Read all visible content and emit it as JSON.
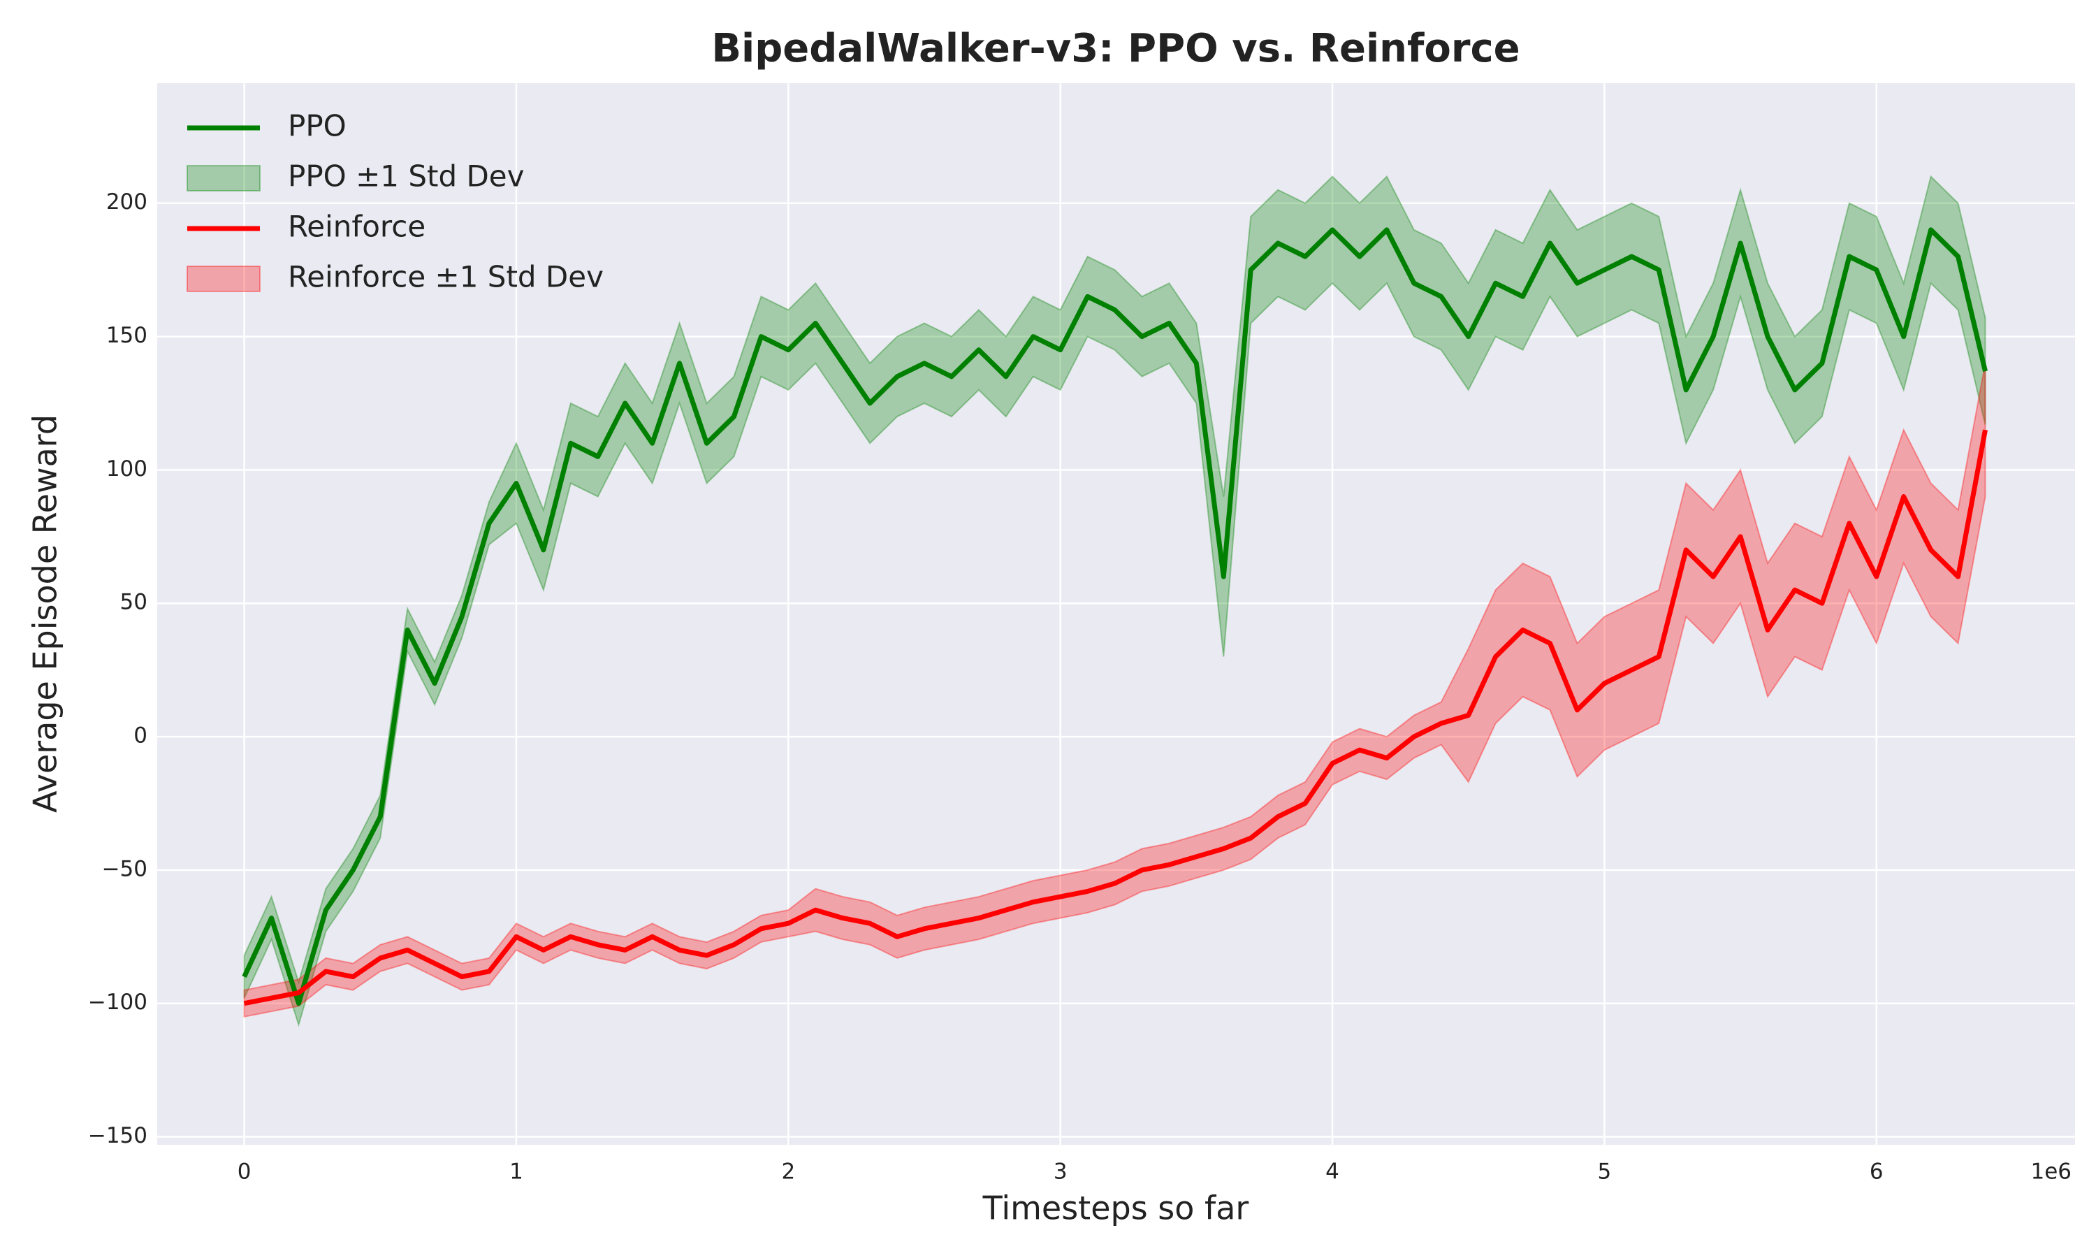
{
  "chart_data": {
    "type": "line",
    "title": "BipedalWalker-v3: PPO vs. Reinforce",
    "x_label": "Timesteps so far",
    "y_label": "Average Episode Reward",
    "x_offset_label": "1e6",
    "xlim": [
      -0.32,
      6.73
    ],
    "ylim": [
      -153,
      245
    ],
    "xticks": [
      0,
      1,
      2,
      3,
      4,
      5,
      6
    ],
    "yticks": [
      {
        "value": -150,
        "label": "−150"
      },
      {
        "value": -100,
        "label": "−100"
      },
      {
        "value": -50,
        "label": "−50"
      },
      0,
      50,
      100,
      150,
      200
    ],
    "grid": true,
    "legend": "upper left",
    "x": [
      0,
      0.1,
      0.2,
      0.3,
      0.4,
      0.5,
      0.6,
      0.7,
      0.8,
      0.9,
      1.0,
      1.1,
      1.2,
      1.3,
      1.4,
      1.5,
      1.6,
      1.7,
      1.8,
      1.9,
      2.0,
      2.1,
      2.2,
      2.3,
      2.4,
      2.5,
      2.6,
      2.7,
      2.8,
      2.9,
      3.0,
      3.1,
      3.2,
      3.3,
      3.4,
      3.5,
      3.6,
      3.7,
      3.8,
      3.9,
      4.0,
      4.1,
      4.2,
      4.3,
      4.4,
      4.5,
      4.6,
      4.7,
      4.8,
      4.9,
      5.0,
      5.1,
      5.2,
      5.3,
      5.4,
      5.5,
      5.6,
      5.7,
      5.8,
      5.9,
      6.0,
      6.1,
      6.2,
      6.3,
      6.4
    ],
    "series": [
      {
        "name": "PPO",
        "color": "#008000",
        "values": [
          -90,
          -68,
          -100,
          -65,
          -50,
          -30,
          40,
          20,
          45,
          80,
          95,
          70,
          110,
          105,
          125,
          110,
          140,
          110,
          120,
          150,
          145,
          155,
          140,
          125,
          135,
          140,
          135,
          145,
          135,
          150,
          145,
          165,
          160,
          150,
          155,
          140,
          60,
          175,
          185,
          180,
          190,
          180,
          190,
          170,
          165,
          150,
          170,
          165,
          185,
          170,
          175,
          180,
          175,
          130,
          150,
          185,
          150,
          130,
          140,
          180,
          175,
          150,
          190,
          180,
          137
        ],
        "band": {
          "name": "PPO ±1 Std Dev",
          "lower": [
            -98,
            -76,
            -108,
            -73,
            -58,
            -38,
            32,
            12,
            37,
            72,
            80,
            55,
            95,
            90,
            110,
            95,
            125,
            95,
            105,
            135,
            130,
            140,
            125,
            110,
            120,
            125,
            120,
            130,
            120,
            135,
            130,
            150,
            145,
            135,
            140,
            125,
            30,
            155,
            165,
            160,
            170,
            160,
            170,
            150,
            145,
            130,
            150,
            145,
            165,
            150,
            155,
            160,
            155,
            110,
            130,
            165,
            130,
            110,
            120,
            160,
            155,
            130,
            170,
            160,
            117
          ],
          "upper": [
            -82,
            -60,
            -92,
            -57,
            -42,
            -22,
            48,
            28,
            53,
            88,
            110,
            85,
            125,
            120,
            140,
            125,
            155,
            125,
            135,
            165,
            160,
            170,
            155,
            140,
            150,
            155,
            150,
            160,
            150,
            165,
            160,
            180,
            175,
            165,
            170,
            155,
            90,
            195,
            205,
            200,
            210,
            200,
            210,
            190,
            185,
            170,
            190,
            185,
            205,
            190,
            195,
            200,
            195,
            150,
            170,
            205,
            170,
            150,
            160,
            200,
            195,
            170,
            210,
            200,
            157
          ]
        }
      },
      {
        "name": "Reinforce",
        "color": "#ff0000",
        "values": [
          -100,
          -98,
          -96,
          -88,
          -90,
          -83,
          -80,
          -85,
          -90,
          -88,
          -75,
          -80,
          -75,
          -78,
          -80,
          -75,
          -80,
          -82,
          -78,
          -72,
          -70,
          -65,
          -68,
          -70,
          -75,
          -72,
          -70,
          -68,
          -65,
          -62,
          -60,
          -58,
          -55,
          -50,
          -48,
          -45,
          -42,
          -38,
          -30,
          -25,
          -10,
          -5,
          -8,
          0,
          5,
          8,
          30,
          40,
          35,
          10,
          20,
          25,
          30,
          70,
          60,
          75,
          40,
          55,
          50,
          80,
          60,
          90,
          70,
          60,
          115
        ],
        "band": {
          "name": "Reinforce ±1 Std Dev",
          "lower": [
            -105,
            -103,
            -101,
            -93,
            -95,
            -88,
            -85,
            -90,
            -95,
            -93,
            -80,
            -85,
            -80,
            -83,
            -85,
            -80,
            -85,
            -87,
            -83,
            -77,
            -75,
            -73,
            -76,
            -78,
            -83,
            -80,
            -78,
            -76,
            -73,
            -70,
            -68,
            -66,
            -63,
            -58,
            -56,
            -53,
            -50,
            -46,
            -38,
            -33,
            -18,
            -13,
            -16,
            -8,
            -3,
            -17,
            5,
            15,
            10,
            -15,
            -5,
            0,
            5,
            45,
            35,
            50,
            15,
            30,
            25,
            55,
            35,
            65,
            45,
            35,
            90
          ],
          "upper": [
            -95,
            -93,
            -91,
            -83,
            -85,
            -78,
            -75,
            -80,
            -85,
            -83,
            -70,
            -75,
            -70,
            -73,
            -75,
            -70,
            -75,
            -77,
            -73,
            -67,
            -65,
            -57,
            -60,
            -62,
            -67,
            -64,
            -62,
            -60,
            -57,
            -54,
            -52,
            -50,
            -47,
            -42,
            -40,
            -37,
            -34,
            -30,
            -22,
            -17,
            -2,
            3,
            0,
            8,
            13,
            33,
            55,
            65,
            60,
            35,
            45,
            50,
            55,
            95,
            85,
            100,
            65,
            80,
            75,
            105,
            85,
            115,
            95,
            85,
            140
          ]
        }
      }
    ]
  }
}
